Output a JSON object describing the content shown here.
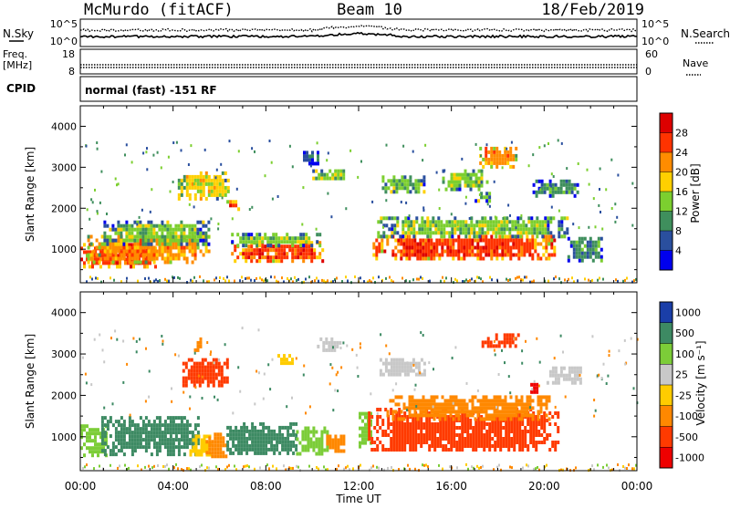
{
  "header": {
    "station": "McMurdo (fitACF)",
    "beam": "Beam 10",
    "date": "18/Feb/2019"
  },
  "side_labels": {
    "nsky": "N.Sky",
    "freq": "Freq.",
    "freq_unit": "[MHz]",
    "cpid": "CPID",
    "nsearch": "N.Search",
    "nave": "Nave"
  },
  "noise_panel": {
    "left_ticks": [
      "10^5",
      "10^0"
    ],
    "right_ticks": [
      "10^5",
      "10^0"
    ]
  },
  "freq_panel": {
    "left_ticks": [
      "18",
      "8"
    ],
    "right_ticks": [
      "60",
      "0"
    ]
  },
  "cpid_text": "normal (fast) -151 RF",
  "colors": {
    "power": [
      "#0000ee",
      "#2a4f9e",
      "#3f8f5d",
      "#7ccf2f",
      "#ffd000",
      "#ff8c00",
      "#ff3300",
      "#dd0000"
    ],
    "velocity": [
      "#1a3ea8",
      "#3d8a63",
      "#7ccd38",
      "#c8c8c8",
      "#ffcc00",
      "#ff8800",
      "#ff3a00",
      "#ee0000"
    ]
  },
  "chart_data": [
    {
      "type": "heatmap",
      "name": "power",
      "ylabel": "Slant Range [km]",
      "xlabel": "Time UT",
      "xlim": [
        "00:00",
        "24:00"
      ],
      "ylim": [
        180,
        4500
      ],
      "x_ticks": [
        "00:00",
        "04:00",
        "08:00",
        "12:00",
        "16:00",
        "20:00",
        "00:00"
      ],
      "y_ticks": [
        1000,
        2000,
        3000,
        4000
      ],
      "colorbar": {
        "label": "Power [dB]",
        "ticks": [
          4,
          8,
          12,
          16,
          20,
          24,
          28
        ],
        "range": [
          0,
          32
        ]
      },
      "regions": [
        {
          "t0": 0.0,
          "t1": 3.3,
          "r0": 550,
          "r1": 1150,
          "value": 27
        },
        {
          "t0": 0.3,
          "t1": 5.6,
          "r0": 700,
          "r1": 1350,
          "value": 22
        },
        {
          "t0": 1.0,
          "t1": 5.5,
          "r0": 1100,
          "r1": 1700,
          "value": 12
        },
        {
          "t0": 6.5,
          "t1": 10.5,
          "r0": 700,
          "r1": 1200,
          "value": 26
        },
        {
          "t0": 6.5,
          "t1": 10.3,
          "r0": 1100,
          "r1": 1400,
          "value": 14
        },
        {
          "t0": 12.6,
          "t1": 20.5,
          "r0": 750,
          "r1": 1350,
          "value": 24
        },
        {
          "t0": 12.8,
          "t1": 21.0,
          "r0": 1300,
          "r1": 1800,
          "value": 12
        },
        {
          "t0": 21.0,
          "t1": 22.5,
          "r0": 700,
          "r1": 1300,
          "value": 9
        },
        {
          "t0": 4.2,
          "t1": 6.4,
          "r0": 2200,
          "r1": 2900,
          "value": 16
        },
        {
          "t0": 6.3,
          "t1": 6.8,
          "r0": 2000,
          "r1": 2200,
          "value": 26
        },
        {
          "t0": 9.6,
          "t1": 10.3,
          "r0": 3100,
          "r1": 3400,
          "value": 6
        },
        {
          "t0": 10.0,
          "t1": 11.5,
          "r0": 2700,
          "r1": 2950,
          "value": 12
        },
        {
          "t0": 13.0,
          "t1": 14.8,
          "r0": 2400,
          "r1": 2800,
          "value": 14
        },
        {
          "t0": 15.6,
          "t1": 17.6,
          "r0": 2500,
          "r1": 2950,
          "value": 14
        },
        {
          "t0": 17.2,
          "t1": 18.8,
          "r0": 3000,
          "r1": 3500,
          "value": 20
        },
        {
          "t0": 17.0,
          "t1": 17.6,
          "r0": 2200,
          "r1": 2400,
          "value": 12
        },
        {
          "t0": 19.5,
          "t1": 21.5,
          "r0": 2300,
          "r1": 2700,
          "value": 11
        }
      ]
    },
    {
      "type": "heatmap",
      "name": "velocity",
      "ylabel": "Slant Range [km]",
      "xlabel": "Time UT",
      "xlim": [
        "00:00",
        "24:00"
      ],
      "ylim": [
        180,
        4500
      ],
      "x_ticks": [
        "00:00",
        "04:00",
        "08:00",
        "12:00",
        "16:00",
        "20:00",
        "00:00"
      ],
      "y_ticks": [
        1000,
        2000,
        3000,
        4000
      ],
      "colorbar": {
        "label": "Velocity [m s⁻¹]",
        "ticks": [
          "1000",
          "500",
          "100",
          "25",
          "-25",
          "-100",
          "-500",
          "-1000"
        ]
      },
      "regions": [
        {
          "t0": 0.0,
          "t1": 1.1,
          "r0": 550,
          "r1": 1300,
          "value": "100"
        },
        {
          "t0": 0.9,
          "t1": 5.1,
          "r0": 600,
          "r1": 1500,
          "value": "500"
        },
        {
          "t0": 4.7,
          "t1": 5.6,
          "r0": 600,
          "r1": 1050,
          "value": "-25"
        },
        {
          "t0": 5.4,
          "t1": 6.3,
          "r0": 500,
          "r1": 1100,
          "value": "-100"
        },
        {
          "t0": 6.3,
          "t1": 9.3,
          "r0": 600,
          "r1": 1350,
          "value": "500"
        },
        {
          "t0": 9.3,
          "t1": 10.6,
          "r0": 600,
          "r1": 1250,
          "value": "100"
        },
        {
          "t0": 10.6,
          "t1": 11.4,
          "r0": 650,
          "r1": 1050,
          "value": "-100"
        },
        {
          "t0": 12.0,
          "t1": 12.5,
          "r0": 800,
          "r1": 1600,
          "value": "100"
        },
        {
          "t0": 12.4,
          "t1": 20.6,
          "r0": 650,
          "r1": 1700,
          "value": "-500"
        },
        {
          "t0": 13.2,
          "t1": 20.2,
          "r0": 1400,
          "r1": 2000,
          "value": "-100"
        },
        {
          "t0": 4.4,
          "t1": 6.4,
          "r0": 2200,
          "r1": 2900,
          "value": "-500"
        },
        {
          "t0": 4.9,
          "t1": 5.3,
          "r0": 3100,
          "r1": 3400,
          "value": "-100"
        },
        {
          "t0": 8.5,
          "t1": 9.2,
          "r0": 2800,
          "r1": 3000,
          "value": "-25"
        },
        {
          "t0": 10.2,
          "t1": 11.2,
          "r0": 3100,
          "r1": 3400,
          "value": "25"
        },
        {
          "t0": 12.9,
          "t1": 14.8,
          "r0": 2500,
          "r1": 2900,
          "value": "25"
        },
        {
          "t0": 17.3,
          "t1": 18.9,
          "r0": 3150,
          "r1": 3500,
          "value": "-500"
        },
        {
          "t0": 19.4,
          "t1": 19.8,
          "r0": 2050,
          "r1": 2300,
          "value": "-1000"
        },
        {
          "t0": 20.1,
          "t1": 21.6,
          "r0": 2300,
          "r1": 2700,
          "value": "25"
        }
      ]
    }
  ]
}
